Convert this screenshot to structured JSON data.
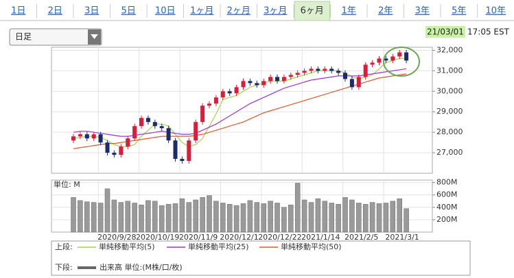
{
  "period_tabs": {
    "items": [
      "1日",
      "2日",
      "3日",
      "5日",
      "10日",
      "1ヶ月",
      "2ヶ月",
      "3ヶ月",
      "6ヶ月",
      "1年",
      "2年",
      "3年",
      "5年",
      "10年"
    ],
    "selected": 8
  },
  "interval_select": "日足",
  "timestamp": {
    "date": "21/03/01",
    "time": "17:05 EST"
  },
  "legend": {
    "upper": "上段:",
    "lower": "下段:"
  },
  "chart_data": [
    {
      "type": "candlestick",
      "open": [
        27600,
        27800,
        27900,
        27700,
        27900,
        27500,
        27000,
        26900,
        27300,
        27700,
        28300,
        28700,
        28500,
        28300,
        28200,
        27600,
        26700,
        26600,
        27600,
        28500,
        29300,
        29400,
        29700,
        30000,
        29900,
        30200,
        30500,
        30400,
        30300,
        30500,
        30700,
        30500,
        30700,
        30800,
        30900,
        31000,
        31100,
        31000,
        31100,
        31000,
        30900,
        30600,
        30200,
        30700,
        31300,
        31400,
        31600,
        31500,
        31700,
        31900
      ],
      "high": [
        27920,
        28020,
        28020,
        28020,
        28020,
        27620,
        27120,
        27420,
        27820,
        28420,
        28820,
        28820,
        28620,
        28420,
        28320,
        27720,
        26820,
        27720,
        28620,
        29420,
        29520,
        29820,
        30120,
        30120,
        30320,
        30620,
        30620,
        30520,
        30620,
        30820,
        30820,
        30820,
        30920,
        31020,
        31120,
        31220,
        31220,
        31220,
        31220,
        31120,
        31020,
        30720,
        30820,
        31420,
        31520,
        31720,
        31720,
        31820,
        32020,
        32020
      ],
      "low": [
        27470,
        27670,
        27570,
        27570,
        27370,
        26870,
        26770,
        26770,
        27170,
        27570,
        28170,
        28370,
        28170,
        28070,
        27470,
        26570,
        26470,
        26470,
        27470,
        28370,
        29170,
        29270,
        29570,
        29770,
        29770,
        30070,
        30270,
        30170,
        30170,
        30370,
        30370,
        30370,
        30570,
        30670,
        30770,
        30870,
        30870,
        30870,
        30870,
        30770,
        30470,
        30070,
        30070,
        30570,
        31170,
        31270,
        31370,
        31370,
        31570,
        31370
      ],
      "close": [
        27800,
        27900,
        27700,
        27900,
        27500,
        27000,
        26900,
        27300,
        27700,
        28300,
        28700,
        28500,
        28300,
        28200,
        27600,
        26700,
        26600,
        27600,
        28500,
        29300,
        29400,
        29700,
        30000,
        29900,
        30200,
        30500,
        30400,
        30300,
        30500,
        30700,
        30500,
        30700,
        30800,
        30900,
        31000,
        31100,
        31000,
        31100,
        31000,
        30900,
        30600,
        30200,
        30700,
        31300,
        31400,
        31600,
        31500,
        31700,
        31900,
        31500
      ],
      "up_color": "#d81e3c",
      "down_color": "#1c2a6e",
      "series": [
        {
          "name": "単純移動平均(5)",
          "color": "#a9d24a",
          "values": [
            27700,
            27750,
            27800,
            27800,
            27750,
            27600,
            27400,
            27300,
            27300,
            27400,
            27800,
            28100,
            28400,
            28400,
            28300,
            27900,
            27500,
            27300,
            27400,
            27700,
            28300,
            28900,
            29600,
            29700,
            29800,
            30000,
            30200,
            30300,
            30400,
            30500,
            30500,
            30500,
            30600,
            30700,
            30800,
            30900,
            31000,
            31000,
            31000,
            31000,
            30900,
            30700,
            30600,
            30700,
            30800,
            31100,
            31400,
            31500,
            31600,
            31600
          ]
        },
        {
          "name": "単純移動平均(25)",
          "color": "#9a33d6",
          "values": [
            28000,
            28050,
            28050,
            28000,
            27950,
            27900,
            27850,
            27800,
            27800,
            27850,
            27900,
            27950,
            28000,
            28050,
            28000,
            27950,
            27900,
            27900,
            27950,
            28100,
            28250,
            28400,
            28600,
            28800,
            29000,
            29200,
            29400,
            29550,
            29700,
            29850,
            30000,
            30150,
            30250,
            30350,
            30450,
            30550,
            30600,
            30650,
            30700,
            30750,
            30750,
            30750,
            30750,
            30800,
            30850,
            30900,
            30950,
            31000,
            31050,
            31100
          ]
        },
        {
          "name": "単純移動平均(50)",
          "color": "#e8562e",
          "values": [
            27200,
            27250,
            27300,
            27350,
            27400,
            27450,
            27450,
            27500,
            27550,
            27600,
            27650,
            27700,
            27750,
            27800,
            27800,
            27800,
            27800,
            27800,
            27850,
            27900,
            28000,
            28100,
            28200,
            28300,
            28400,
            28500,
            28650,
            28800,
            28950,
            29050,
            29150,
            29250,
            29350,
            29450,
            29550,
            29650,
            29750,
            29850,
            29950,
            30050,
            30150,
            30250,
            30350,
            30450,
            30550,
            30650,
            30700,
            30750,
            30800,
            30850
          ]
        }
      ],
      "ylim": [
        26000,
        32150
      ],
      "yticks": [
        {
          "value": 27000,
          "label": "27,000"
        },
        {
          "value": 28000,
          "label": "28,000"
        },
        {
          "value": 29000,
          "label": "29,000"
        },
        {
          "value": 30000,
          "label": "30,000"
        },
        {
          "value": 31000,
          "label": "31,000"
        },
        {
          "value": 32000,
          "label": "32,000"
        }
      ],
      "grid": true
    },
    {
      "type": "bar",
      "unit_label": "単位: M",
      "categories": [
        null,
        null,
        null,
        null,
        null,
        null,
        null,
        "2020/9/28",
        null,
        null,
        null,
        null,
        null,
        "2020/10/19",
        null,
        null,
        null,
        null,
        null,
        "2020/11/9",
        null,
        null,
        null,
        null,
        null,
        "2020/12/1",
        null,
        null,
        null,
        null,
        null,
        "2020/12/22",
        null,
        null,
        null,
        null,
        null,
        "2021/1/14",
        null,
        null,
        null,
        null,
        null,
        "2021/2/5",
        null,
        null,
        null,
        null,
        null,
        "2021/3/1"
      ],
      "series": [
        {
          "name": "出来高 単位:(M株/口/枚)",
          "color": "#9a9a9a",
          "values": [
            560,
            510,
            490,
            480,
            470,
            700,
            520,
            480,
            500,
            470,
            440,
            510,
            500,
            430,
            450,
            460,
            540,
            480,
            520,
            560,
            590,
            500,
            470,
            450,
            430,
            460,
            510,
            480,
            460,
            500,
            470,
            400,
            440,
            790,
            520,
            480,
            540,
            500,
            470,
            450,
            560,
            520,
            470,
            450,
            480,
            460,
            470,
            500,
            540,
            380
          ]
        }
      ],
      "ylim": [
        0,
        840
      ],
      "yticks": [
        {
          "value": 200,
          "label": "200M"
        },
        {
          "value": 400,
          "label": "400M"
        },
        {
          "value": 600,
          "label": "600M"
        },
        {
          "value": 800,
          "label": "800M"
        }
      ],
      "grid": true
    }
  ]
}
